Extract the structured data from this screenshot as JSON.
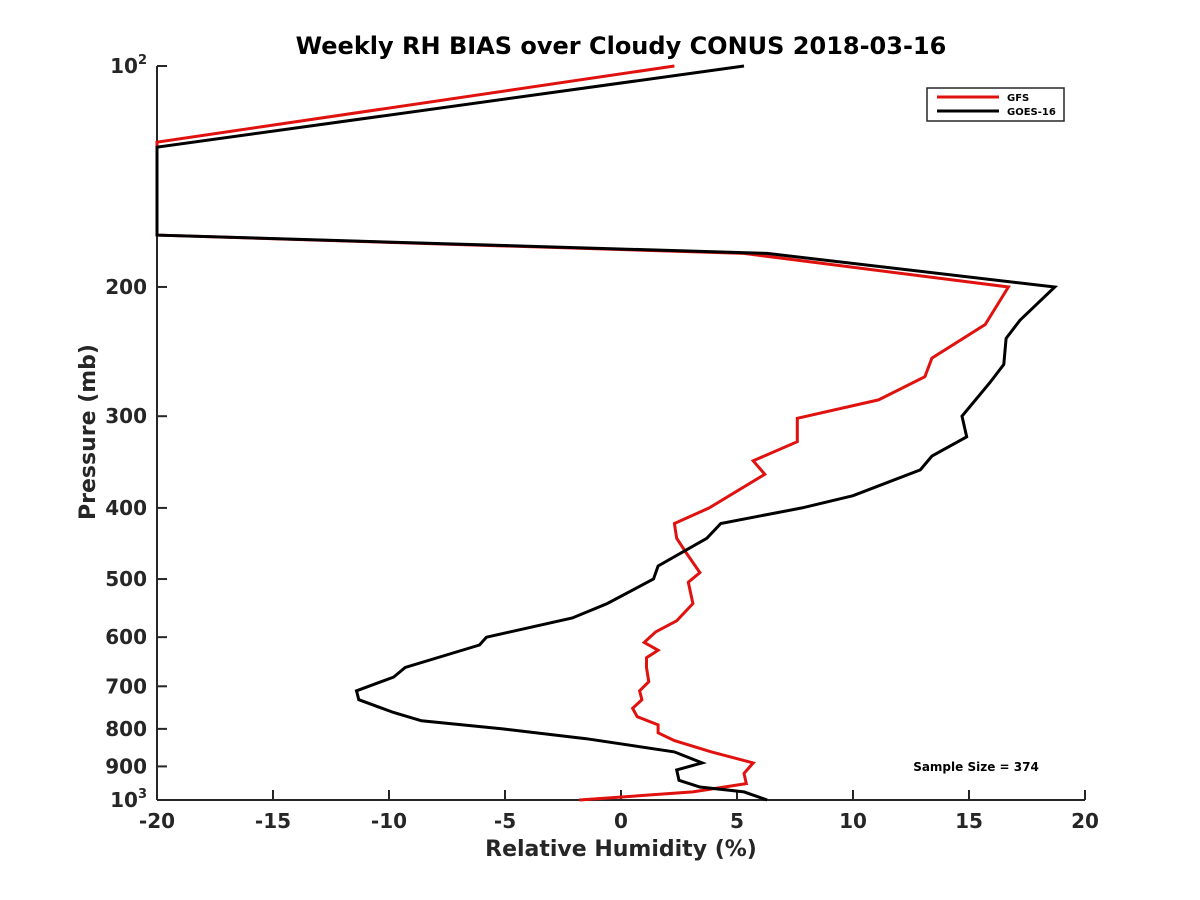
{
  "chart_data": {
    "type": "line",
    "title": "Weekly RH BIAS over Cloudy CONUS 2018-03-16",
    "xlabel": "Relative Humidity (%)",
    "ylabel": "Pressure (mb)",
    "xlim": [
      -20,
      20
    ],
    "ylim": [
      100,
      1000
    ],
    "yscale": "log",
    "yreversed": true,
    "x_ticks": [
      -20,
      -15,
      -10,
      -5,
      0,
      5,
      10,
      15,
      20
    ],
    "x_tick_labels": [
      "-20",
      "-15",
      "-10",
      "-5",
      "0",
      "5",
      "10",
      "15",
      "20"
    ],
    "y_ticks": [
      100,
      200,
      300,
      400,
      500,
      600,
      700,
      800,
      900,
      1000
    ],
    "y_tick_labels": [
      {
        "base": "10",
        "sup": "2"
      },
      {
        "base": "200",
        "sup": ""
      },
      {
        "base": "300",
        "sup": ""
      },
      {
        "base": "400",
        "sup": ""
      },
      {
        "base": "500",
        "sup": ""
      },
      {
        "base": "600",
        "sup": ""
      },
      {
        "base": "700",
        "sup": ""
      },
      {
        "base": "800",
        "sup": ""
      },
      {
        "base": "900",
        "sup": ""
      },
      {
        "base": "10",
        "sup": "3"
      }
    ],
    "legend_position": "top-right",
    "annotation": "Sample Size = 374",
    "series": [
      {
        "name": "GFS",
        "color": "#e0120f",
        "points": [
          [
            2.3,
            100
          ],
          [
            -20,
            127
          ],
          [
            -20,
            170
          ],
          [
            5.3,
            180
          ],
          [
            16.7,
            200
          ],
          [
            15.7,
            225
          ],
          [
            13.4,
            250
          ],
          [
            13.1,
            265
          ],
          [
            11.1,
            285
          ],
          [
            7.6,
            302
          ],
          [
            7.6,
            325
          ],
          [
            5.7,
            345
          ],
          [
            6.2,
            360
          ],
          [
            3.8,
            400
          ],
          [
            2.3,
            420
          ],
          [
            2.4,
            440
          ],
          [
            2.8,
            460
          ],
          [
            3.4,
            490
          ],
          [
            2.9,
            505
          ],
          [
            3.1,
            540
          ],
          [
            2.4,
            570
          ],
          [
            1.5,
            590
          ],
          [
            1.0,
            610
          ],
          [
            1.6,
            625
          ],
          [
            1.1,
            640
          ],
          [
            1.1,
            660
          ],
          [
            1.2,
            690
          ],
          [
            0.8,
            710
          ],
          [
            0.9,
            730
          ],
          [
            0.5,
            750
          ],
          [
            0.7,
            770
          ],
          [
            1.6,
            790
          ],
          [
            1.6,
            810
          ],
          [
            2.3,
            830
          ],
          [
            3.9,
            860
          ],
          [
            5.7,
            890
          ],
          [
            5.3,
            920
          ],
          [
            5.4,
            950
          ],
          [
            3.1,
            975
          ],
          [
            -1.8,
            1000
          ]
        ]
      },
      {
        "name": "GOES-16",
        "color": "#000000",
        "points": [
          [
            5.3,
            100
          ],
          [
            -20,
            129
          ],
          [
            -20,
            170
          ],
          [
            6.3,
            180
          ],
          [
            18.7,
            200
          ],
          [
            17.2,
            222
          ],
          [
            16.6,
            235
          ],
          [
            16.5,
            255
          ],
          [
            15.9,
            270
          ],
          [
            14.7,
            300
          ],
          [
            14.9,
            320
          ],
          [
            13.4,
            340
          ],
          [
            12.9,
            355
          ],
          [
            10.0,
            385
          ],
          [
            7.8,
            400
          ],
          [
            4.3,
            420
          ],
          [
            3.7,
            440
          ],
          [
            1.6,
            480
          ],
          [
            1.4,
            500
          ],
          [
            -0.6,
            540
          ],
          [
            -2.1,
            565
          ],
          [
            -5.8,
            600
          ],
          [
            -6.1,
            615
          ],
          [
            -9.3,
            660
          ],
          [
            -9.8,
            680
          ],
          [
            -11.4,
            710
          ],
          [
            -11.3,
            730
          ],
          [
            -9.8,
            760
          ],
          [
            -8.6,
            780
          ],
          [
            -5.1,
            800
          ],
          [
            -1.5,
            825
          ],
          [
            2.3,
            860
          ],
          [
            3.5,
            890
          ],
          [
            2.4,
            910
          ],
          [
            2.5,
            940
          ],
          [
            3.4,
            960
          ],
          [
            5.3,
            975
          ],
          [
            6.3,
            1000
          ]
        ]
      }
    ]
  }
}
